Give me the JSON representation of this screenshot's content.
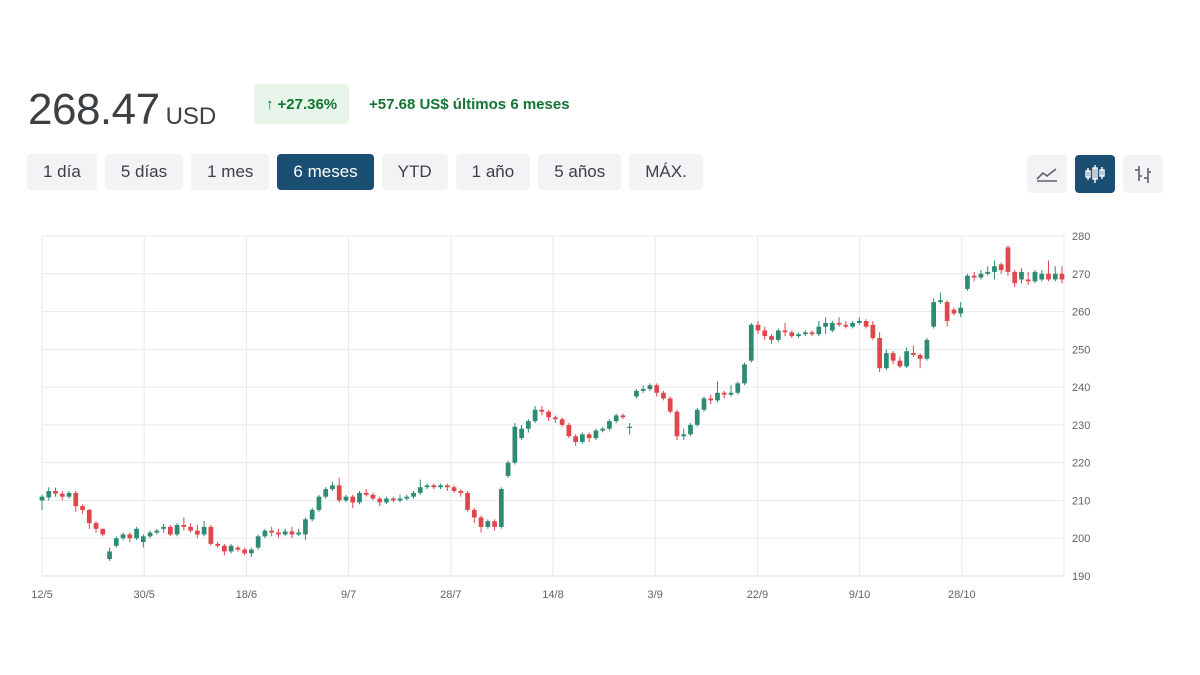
{
  "quote": {
    "price": "268.47",
    "currency": "USD",
    "change_pct": "+27.36%",
    "change_abs_text": "+57.68 US$ últimos 6 meses",
    "accent_up": "#137333",
    "accent_down": "#d93025"
  },
  "ranges": [
    {
      "label": "1 día",
      "active": false
    },
    {
      "label": "5 días",
      "active": false
    },
    {
      "label": "1 mes",
      "active": false
    },
    {
      "label": "6 meses",
      "active": true
    },
    {
      "label": "YTD",
      "active": false
    },
    {
      "label": "1 año",
      "active": false
    },
    {
      "label": "5 años",
      "active": false
    },
    {
      "label": "MÁX.",
      "active": false
    }
  ],
  "chart_types": [
    {
      "name": "line-chart-icon",
      "active": false
    },
    {
      "name": "candlestick-icon",
      "active": true
    },
    {
      "name": "ohlc-bars-icon",
      "active": false
    }
  ],
  "chart_data": {
    "type": "candlestick",
    "title": "",
    "xlabel": "",
    "ylabel": "",
    "ylim": [
      190,
      280
    ],
    "y_ticks": [
      190,
      200,
      210,
      220,
      230,
      240,
      250,
      260,
      270,
      280
    ],
    "y_axis_position": "right",
    "x_tick_labels": [
      "12/5",
      "30/5",
      "18/6",
      "9/7",
      "28/7",
      "14/8",
      "3/9",
      "22/9",
      "9/10",
      "28/10"
    ],
    "grid": true,
    "up_color": "#2e8b73",
    "down_color": "#e0474c",
    "candles": [
      [
        210.0,
        211.0,
        207.5,
        211.5
      ],
      [
        210.8,
        212.5,
        210.0,
        213.5
      ],
      [
        212.5,
        211.8,
        211.0,
        213.4
      ],
      [
        211.8,
        211.0,
        210.0,
        212.5
      ],
      [
        211.0,
        212.0,
        210.5,
        212.5
      ],
      [
        212.0,
        208.5,
        207.0,
        212.5
      ],
      [
        208.5,
        207.5,
        206.5,
        209.0
      ],
      [
        207.5,
        204.0,
        202.5,
        207.8
      ],
      [
        204.0,
        202.5,
        201.5,
        204.5
      ],
      [
        202.5,
        201.0,
        200.5,
        202.5
      ],
      [
        194.5,
        196.5,
        194.0,
        197.5
      ],
      [
        198.0,
        200.0,
        197.5,
        200.5
      ],
      [
        200.0,
        201.0,
        199.5,
        201.5
      ],
      [
        201.0,
        200.0,
        199.0,
        201.5
      ],
      [
        200.0,
        202.5,
        199.5,
        203.0
      ],
      [
        199.0,
        200.5,
        197.5,
        201.0
      ],
      [
        200.5,
        201.5,
        200.0,
        202.0
      ],
      [
        201.5,
        202.0,
        201.0,
        202.5
      ],
      [
        202.5,
        203.0,
        201.5,
        203.8
      ],
      [
        203.0,
        201.0,
        200.5,
        203.5
      ],
      [
        201.0,
        203.5,
        200.5,
        204.0
      ],
      [
        203.5,
        203.0,
        202.0,
        205.5
      ],
      [
        203.0,
        202.0,
        201.5,
        204.0
      ],
      [
        202.0,
        201.0,
        200.0,
        203.5
      ],
      [
        201.0,
        203.0,
        200.5,
        204.5
      ],
      [
        203.0,
        198.5,
        198.0,
        203.5
      ],
      [
        198.5,
        198.0,
        197.5,
        199.0
      ],
      [
        198.0,
        196.5,
        195.5,
        198.5
      ],
      [
        196.5,
        198.0,
        196.0,
        198.5
      ],
      [
        197.5,
        197.0,
        196.5,
        198.0
      ],
      [
        197.0,
        196.0,
        195.5,
        197.5
      ],
      [
        196.0,
        197.0,
        195.0,
        197.5
      ],
      [
        197.5,
        200.5,
        197.0,
        201.0
      ],
      [
        200.5,
        202.0,
        200.0,
        202.5
      ],
      [
        202.0,
        201.5,
        200.5,
        203.0
      ],
      [
        201.5,
        201.0,
        200.0,
        202.5
      ],
      [
        201.0,
        201.8,
        200.5,
        202.5
      ],
      [
        201.8,
        201.0,
        200.0,
        203.0
      ],
      [
        201.0,
        201.5,
        200.5,
        202.5
      ],
      [
        201.0,
        205.0,
        199.5,
        205.5
      ],
      [
        205.0,
        207.5,
        204.5,
        208.0
      ],
      [
        207.5,
        211.0,
        207.0,
        211.5
      ],
      [
        211.0,
        213.0,
        210.5,
        213.5
      ],
      [
        213.0,
        214.0,
        212.5,
        215.0
      ],
      [
        214.0,
        210.0,
        209.5,
        216.0
      ],
      [
        210.0,
        211.0,
        209.5,
        211.5
      ],
      [
        211.0,
        209.5,
        208.0,
        211.5
      ],
      [
        209.5,
        212.0,
        209.0,
        212.5
      ],
      [
        212.0,
        211.5,
        211.0,
        213.0
      ],
      [
        211.5,
        210.5,
        210.0,
        212.0
      ],
      [
        210.5,
        209.5,
        208.5,
        211.0
      ],
      [
        209.5,
        210.5,
        209.0,
        211.0
      ],
      [
        210.5,
        210.0,
        209.5,
        211.0
      ],
      [
        210.0,
        210.5,
        209.5,
        211.5
      ],
      [
        210.5,
        211.0,
        210.0,
        211.5
      ],
      [
        211.0,
        212.0,
        210.5,
        212.5
      ],
      [
        212.0,
        213.5,
        211.5,
        215.5
      ],
      [
        213.5,
        214.0,
        213.0,
        214.5
      ],
      [
        214.0,
        213.5,
        213.0,
        214.5
      ],
      [
        213.5,
        214.0,
        213.0,
        214.5
      ],
      [
        214.0,
        213.5,
        212.5,
        214.5
      ],
      [
        213.5,
        212.5,
        212.0,
        214.0
      ],
      [
        212.5,
        212.0,
        211.0,
        213.0
      ],
      [
        212.0,
        207.5,
        207.0,
        212.5
      ],
      [
        207.5,
        205.5,
        204.0,
        208.0
      ],
      [
        205.5,
        203.0,
        201.5,
        206.0
      ],
      [
        203.0,
        204.5,
        202.5,
        205.0
      ],
      [
        204.5,
        203.0,
        202.0,
        205.0
      ],
      [
        203.0,
        213.0,
        202.5,
        213.5
      ],
      [
        216.5,
        220.0,
        216.0,
        220.5
      ],
      [
        220.0,
        229.5,
        219.5,
        230.5
      ],
      [
        226.5,
        229.0,
        226.0,
        230.0
      ],
      [
        229.0,
        231.0,
        228.0,
        231.5
      ],
      [
        231.0,
        234.0,
        230.5,
        235.0
      ],
      [
        234.0,
        233.5,
        232.5,
        235.0
      ],
      [
        233.5,
        232.0,
        231.0,
        234.0
      ],
      [
        232.0,
        231.5,
        230.5,
        232.5
      ],
      [
        231.5,
        230.0,
        229.5,
        232.0
      ],
      [
        230.0,
        227.0,
        226.5,
        230.5
      ],
      [
        227.0,
        225.5,
        224.5,
        227.5
      ],
      [
        225.5,
        227.5,
        225.0,
        228.0
      ],
      [
        227.5,
        226.5,
        225.5,
        228.0
      ],
      [
        226.5,
        228.5,
        226.0,
        229.0
      ],
      [
        228.5,
        229.0,
        228.0,
        229.5
      ],
      [
        229.0,
        231.0,
        228.5,
        231.5
      ],
      [
        231.0,
        232.5,
        230.5,
        233.0
      ],
      [
        232.5,
        232.0,
        231.5,
        233.0
      ],
      [
        229.5,
        229.5,
        227.5,
        230.5
      ],
      [
        237.5,
        239.0,
        237.0,
        239.5
      ],
      [
        239.0,
        239.5,
        238.5,
        240.5
      ],
      [
        239.5,
        240.5,
        239.0,
        241.0
      ],
      [
        240.5,
        238.5,
        237.5,
        241.0
      ],
      [
        238.5,
        237.0,
        236.5,
        239.0
      ],
      [
        237.0,
        233.5,
        233.0,
        237.5
      ],
      [
        233.5,
        227.0,
        226.0,
        234.0
      ],
      [
        227.0,
        227.5,
        226.0,
        229.0
      ],
      [
        227.5,
        230.0,
        227.0,
        230.5
      ],
      [
        230.0,
        234.0,
        229.5,
        234.5
      ],
      [
        234.0,
        237.0,
        233.5,
        237.5
      ],
      [
        237.0,
        236.5,
        235.5,
        238.0
      ],
      [
        236.5,
        238.5,
        236.0,
        241.5
      ],
      [
        238.5,
        238.0,
        237.0,
        239.0
      ],
      [
        238.0,
        238.5,
        237.5,
        240.5
      ],
      [
        238.5,
        241.0,
        238.0,
        241.5
      ],
      [
        241.0,
        246.0,
        240.5,
        246.5
      ],
      [
        247.0,
        256.5,
        246.5,
        257.0
      ],
      [
        256.5,
        255.0,
        254.0,
        257.5
      ],
      [
        255.0,
        253.5,
        252.5,
        256.0
      ],
      [
        253.5,
        252.5,
        251.5,
        254.0
      ],
      [
        252.5,
        255.0,
        252.0,
        255.5
      ],
      [
        255.0,
        254.5,
        253.5,
        257.0
      ],
      [
        254.5,
        253.5,
        253.0,
        255.0
      ],
      [
        253.5,
        254.0,
        253.0,
        254.5
      ],
      [
        254.0,
        254.5,
        253.5,
        255.0
      ],
      [
        254.5,
        254.0,
        253.5,
        255.0
      ],
      [
        254.0,
        256.0,
        253.5,
        257.5
      ],
      [
        256.0,
        257.0,
        254.0,
        258.5
      ],
      [
        255.0,
        257.0,
        254.5,
        257.5
      ],
      [
        257.0,
        256.5,
        256.0,
        258.5
      ],
      [
        256.5,
        256.0,
        255.5,
        257.5
      ],
      [
        256.0,
        257.0,
        255.5,
        257.5
      ],
      [
        257.0,
        257.5,
        256.5,
        258.5
      ],
      [
        257.5,
        256.0,
        255.5,
        258.0
      ],
      [
        256.5,
        253.0,
        252.5,
        257.5
      ],
      [
        253.0,
        245.0,
        244.0,
        254.5
      ],
      [
        245.0,
        249.0,
        244.5,
        250.0
      ],
      [
        249.0,
        247.0,
        246.0,
        249.5
      ],
      [
        247.0,
        245.5,
        245.0,
        248.0
      ],
      [
        245.5,
        249.5,
        245.0,
        250.5
      ],
      [
        249.0,
        248.5,
        248.0,
        251.0
      ],
      [
        248.5,
        247.5,
        245.0,
        249.0
      ],
      [
        247.5,
        252.5,
        247.0,
        253.0
      ],
      [
        256.0,
        262.5,
        255.5,
        263.5
      ],
      [
        262.5,
        263.0,
        262.0,
        265.0
      ],
      [
        262.5,
        257.5,
        256.0,
        263.0
      ],
      [
        260.5,
        259.5,
        259.0,
        261.0
      ],
      [
        259.5,
        261.0,
        258.5,
        262.5
      ],
      [
        266.0,
        269.5,
        265.5,
        270.0
      ],
      [
        269.5,
        269.0,
        268.0,
        270.5
      ],
      [
        269.0,
        270.0,
        268.5,
        271.0
      ],
      [
        270.0,
        270.5,
        269.5,
        272.0
      ],
      [
        270.5,
        272.0,
        268.5,
        273.5
      ],
      [
        272.5,
        271.0,
        270.0,
        273.0
      ],
      [
        277.0,
        270.5,
        269.5,
        277.5
      ],
      [
        270.5,
        267.5,
        266.5,
        271.0
      ],
      [
        268.5,
        270.5,
        267.5,
        271.5
      ],
      [
        268.5,
        268.0,
        267.0,
        270.5
      ],
      [
        268.0,
        270.5,
        267.5,
        271.0
      ],
      [
        268.5,
        270.0,
        268.0,
        271.0
      ],
      [
        270.0,
        268.5,
        268.0,
        273.5
      ],
      [
        268.5,
        270.0,
        268.0,
        272.0
      ],
      [
        270.0,
        268.5,
        267.5,
        272.0
      ]
    ]
  }
}
